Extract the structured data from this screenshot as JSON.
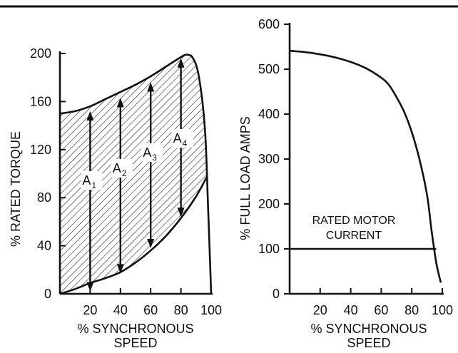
{
  "chart_data": [
    {
      "type": "area",
      "xlabel": [
        "% SYNCHRONOUS",
        "SPEED"
      ],
      "ylabel": "% RATED TORQUE",
      "xlim": [
        0,
        100
      ],
      "ylim": [
        0,
        200
      ],
      "xticks": [
        "20",
        "40",
        "60",
        "80",
        "100"
      ],
      "yticks": [
        "0",
        "40",
        "80",
        "120",
        "160",
        "200"
      ],
      "series": [
        {
          "role": "motor torque curve",
          "x": [
            0,
            10,
            20,
            30,
            40,
            50,
            60,
            70,
            80,
            84,
            88,
            92,
            96,
            98,
            100
          ],
          "y": [
            150,
            152,
            156,
            162,
            168,
            174,
            181,
            189,
            197,
            199,
            196,
            180,
            135,
            70,
            0
          ]
        },
        {
          "role": "load torque curve",
          "x": [
            0,
            10,
            20,
            30,
            40,
            50,
            60,
            70,
            80,
            90,
            97
          ],
          "y": [
            0,
            4,
            9,
            13,
            18,
            26,
            36,
            48,
            63,
            81,
            97
          ]
        }
      ],
      "shading": "hatched area between motor torque and load torque curves",
      "arrows": [
        {
          "label": "A",
          "sub": "1",
          "x": 20,
          "y_from": 2,
          "y_to": 152
        },
        {
          "label": "A",
          "sub": "2",
          "x": 40,
          "y_from": 17,
          "y_to": 163
        },
        {
          "label": "A",
          "sub": "3",
          "x": 60,
          "y_from": 38,
          "y_to": 176
        },
        {
          "label": "A",
          "sub": "4",
          "x": 80,
          "y_from": 64,
          "y_to": 196
        }
      ]
    },
    {
      "type": "line",
      "xlabel": [
        "% SYNCHRONOUS",
        "SPEED"
      ],
      "ylabel": "% FULL LOAD AMPS",
      "xlim": [
        0,
        100
      ],
      "ylim": [
        0,
        600
      ],
      "xticks": [
        "20",
        "40",
        "60",
        "80",
        "100"
      ],
      "yticks": [
        "0",
        "100",
        "200",
        "300",
        "400",
        "500",
        "600"
      ],
      "series": [
        {
          "role": "motor current curve",
          "x": [
            0,
            10,
            20,
            30,
            40,
            50,
            60,
            65,
            70,
            75,
            80,
            85,
            90,
            93,
            96,
            99
          ],
          "y": [
            541,
            538,
            533,
            526,
            516,
            502,
            481,
            465,
            438,
            405,
            360,
            300,
            220,
            140,
            70,
            25
          ]
        },
        {
          "role": "rated motor current",
          "x": [
            0,
            96
          ],
          "y": [
            100,
            100
          ]
        }
      ],
      "annotation": [
        "RATED MOTOR",
        "CURRENT"
      ]
    }
  ]
}
